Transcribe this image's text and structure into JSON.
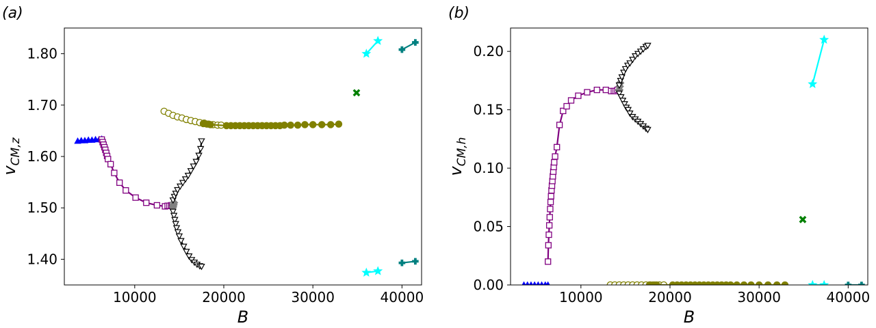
{
  "chart_data": [
    {
      "type": "line",
      "panel_label": "(a)",
      "xlabel": "B",
      "ylabel": "v_{CM,z}",
      "ylabel_main": "v",
      "ylabel_sub": "CM,z",
      "xlim": [
        2100,
        42200
      ],
      "ylim": [
        1.35,
        1.85
      ],
      "xticks": [
        10000,
        20000,
        30000,
        40000
      ],
      "xtick_labels": [
        "10000",
        "20000",
        "30000",
        "40000"
      ],
      "yticks": [
        1.4,
        1.5,
        1.6,
        1.7,
        1.8
      ],
      "ytick_labels": [
        "1.40",
        "1.50",
        "1.60",
        "1.70",
        "1.80"
      ],
      "grid": false,
      "series": [
        {
          "name": "blue-triangles",
          "color": "#0000ff",
          "marker": "triangle-up",
          "filled": true,
          "x": [
            3600,
            4000,
            4400,
            4800,
            5200,
            5600,
            6000,
            6300
          ],
          "y": [
            1.63,
            1.631,
            1.631,
            1.632,
            1.632,
            1.633,
            1.633,
            1.634
          ]
        },
        {
          "name": "purple-squares",
          "color": "#800080",
          "marker": "square",
          "filled": false,
          "x": [
            6300,
            6400,
            6500,
            6600,
            6700,
            6800,
            6900,
            7000,
            7300,
            7700,
            8300,
            9000,
            10100,
            11300,
            12500,
            13400,
            13700,
            13900,
            14100,
            14200
          ],
          "y": [
            1.633,
            1.628,
            1.623,
            1.618,
            1.613,
            1.607,
            1.601,
            1.595,
            1.585,
            1.568,
            1.549,
            1.534,
            1.52,
            1.51,
            1.505,
            1.503,
            1.504,
            1.504,
            1.505,
            1.505
          ]
        },
        {
          "name": "grey-diamonds",
          "color": "#808080",
          "marker": "diamond",
          "filled": true,
          "x": [
            14300,
            14350,
            14400
          ],
          "y": [
            1.502,
            1.506,
            1.51
          ]
        },
        {
          "name": "black-triangles-upper",
          "color": "#000000",
          "marker": "triangle-down",
          "filled": false,
          "x": [
            14300,
            14450,
            14600,
            14800,
            15100,
            15400,
            15700,
            16000,
            16300,
            16600,
            16900,
            17200,
            17400,
            17500
          ],
          "y": [
            1.515,
            1.522,
            1.528,
            1.535,
            1.542,
            1.549,
            1.556,
            1.563,
            1.572,
            1.581,
            1.59,
            1.602,
            1.615,
            1.63
          ]
        },
        {
          "name": "black-triangles-lower",
          "color": "#000000",
          "marker": "triangle-down",
          "filled": false,
          "x": [
            14300,
            14400,
            14500,
            14600,
            14700,
            14850,
            15000,
            15200,
            15500,
            15800,
            16100,
            16400,
            16700,
            17000,
            17300,
            17500
          ],
          "y": [
            1.493,
            1.485,
            1.477,
            1.469,
            1.461,
            1.453,
            1.445,
            1.436,
            1.425,
            1.415,
            1.406,
            1.399,
            1.394,
            1.39,
            1.387,
            1.386
          ]
        },
        {
          "name": "olive-circles-open",
          "color": "#808000",
          "marker": "circle",
          "filled": false,
          "x": [
            13300,
            13800,
            14300,
            14800,
            15300,
            15800,
            16300,
            16800,
            17300,
            17800,
            18300,
            18800,
            19300,
            19700
          ],
          "y": [
            1.688,
            1.684,
            1.68,
            1.677,
            1.675,
            1.672,
            1.67,
            1.668,
            1.666,
            1.665,
            1.663,
            1.662,
            1.661,
            1.661
          ]
        },
        {
          "name": "olive-circles-filled",
          "color": "#808000",
          "marker": "circle",
          "filled": true,
          "x": [
            17700,
            18100,
            18500,
            20300,
            20800,
            21300,
            21800,
            22300,
            22800,
            23300,
            23800,
            24300,
            24800,
            25300,
            25800,
            26300,
            26800,
            27500,
            28300,
            29100,
            30000,
            31000,
            32000,
            32900
          ],
          "y": [
            1.664,
            1.663,
            1.662,
            1.66,
            1.66,
            1.66,
            1.66,
            1.66,
            1.66,
            1.66,
            1.66,
            1.66,
            1.66,
            1.66,
            1.66,
            1.66,
            1.661,
            1.661,
            1.661,
            1.662,
            1.662,
            1.662,
            1.662,
            1.663
          ]
        },
        {
          "name": "green-x",
          "color": "#008000",
          "marker": "x",
          "filled": true,
          "x": [
            34900
          ],
          "y": [
            1.724
          ]
        },
        {
          "name": "cyan-stars-upper",
          "color": "#00ffff",
          "marker": "star",
          "filled": true,
          "x": [
            36000,
            37300
          ],
          "y": [
            1.8,
            1.825
          ]
        },
        {
          "name": "cyan-stars-lower",
          "color": "#00ffff",
          "marker": "star",
          "filled": true,
          "x": [
            36000,
            37300
          ],
          "y": [
            1.374,
            1.377
          ]
        },
        {
          "name": "teal-plus-upper",
          "color": "#008080",
          "marker": "plus",
          "filled": true,
          "x": [
            40000,
            41500
          ],
          "y": [
            1.808,
            1.822
          ]
        },
        {
          "name": "teal-plus-lower",
          "color": "#008080",
          "marker": "plus",
          "filled": true,
          "x": [
            40000,
            41500
          ],
          "y": [
            1.393,
            1.396
          ]
        }
      ]
    },
    {
      "type": "line",
      "panel_label": "(b)",
      "xlabel": "B",
      "ylabel": "v_{CM,h}",
      "ylabel_main": "v",
      "ylabel_sub": "CM,h",
      "xlim": [
        2100,
        42200
      ],
      "ylim": [
        0.0,
        0.22
      ],
      "xticks": [
        10000,
        20000,
        30000,
        40000
      ],
      "xtick_labels": [
        "10000",
        "20000",
        "30000",
        "40000"
      ],
      "yticks": [
        0.0,
        0.05,
        0.1,
        0.15,
        0.2
      ],
      "ytick_labels": [
        "0.00",
        "0.05",
        "0.10",
        "0.15",
        "0.20"
      ],
      "grid": false,
      "series": [
        {
          "name": "blue-triangles",
          "color": "#0000ff",
          "marker": "triangle-up",
          "filled": true,
          "x": [
            3600,
            4000,
            4400,
            4800,
            5200,
            5600,
            6000,
            6300
          ],
          "y": [
            0,
            0,
            0,
            0,
            0,
            0,
            0,
            0
          ]
        },
        {
          "name": "purple-squares",
          "color": "#800080",
          "marker": "square",
          "filled": false,
          "x": [
            6300,
            6350,
            6400,
            6450,
            6500,
            6550,
            6600,
            6650,
            6700,
            6750,
            6800,
            6850,
            6900,
            6950,
            7000,
            7100,
            7300,
            7600,
            8000,
            8400,
            8900,
            9700,
            10700,
            11800,
            12800,
            13400,
            13700,
            13900,
            14100
          ],
          "y": [
            0.02,
            0.034,
            0.043,
            0.051,
            0.058,
            0.065,
            0.071,
            0.076,
            0.081,
            0.085,
            0.089,
            0.093,
            0.097,
            0.101,
            0.105,
            0.11,
            0.118,
            0.137,
            0.149,
            0.153,
            0.158,
            0.162,
            0.165,
            0.167,
            0.167,
            0.166,
            0.166,
            0.166,
            0.167
          ]
        },
        {
          "name": "grey-diamonds",
          "color": "#808080",
          "marker": "diamond",
          "filled": true,
          "x": [
            14300,
            14350,
            14400
          ],
          "y": [
            0.167,
            0.17,
            0.173
          ]
        },
        {
          "name": "black-triangles-upper",
          "color": "#000000",
          "marker": "triangle-down",
          "filled": false,
          "x": [
            14300,
            14450,
            14600,
            14800,
            15000,
            15250,
            15500,
            15800,
            16100,
            16400,
            16700,
            17000,
            17300,
            17500
          ],
          "y": [
            0.171,
            0.175,
            0.178,
            0.182,
            0.185,
            0.188,
            0.19,
            0.193,
            0.196,
            0.198,
            0.2,
            0.202,
            0.204,
            0.205
          ]
        },
        {
          "name": "black-triangles-lower",
          "color": "#000000",
          "marker": "triangle-down",
          "filled": false,
          "x": [
            14300,
            14500,
            14700,
            14900,
            15100,
            15300,
            15500,
            15800,
            16100,
            16400,
            16700,
            17000,
            17300,
            17500
          ],
          "y": [
            0.164,
            0.161,
            0.158,
            0.155,
            0.152,
            0.15,
            0.147,
            0.144,
            0.142,
            0.14,
            0.138,
            0.136,
            0.134,
            0.133
          ]
        },
        {
          "name": "olive-circles-open",
          "color": "#808000",
          "marker": "circle",
          "filled": false,
          "x": [
            13300,
            13800,
            14300,
            14800,
            15300,
            15800,
            16300,
            16800,
            17300,
            17800,
            18300,
            18800,
            19300
          ],
          "y": [
            0,
            0,
            0,
            0,
            0,
            0,
            0,
            0,
            0,
            0,
            0,
            0,
            0
          ]
        },
        {
          "name": "olive-circles-filled",
          "color": "#808000",
          "marker": "circle",
          "filled": true,
          "x": [
            17700,
            18100,
            18500,
            20300,
            20800,
            21300,
            21800,
            22300,
            22800,
            23300,
            23800,
            24300,
            24800,
            25300,
            25800,
            26300,
            26800,
            27500,
            28300,
            29100,
            30000,
            31000,
            32000,
            32900
          ],
          "y": [
            0,
            0,
            0,
            0,
            0,
            0,
            0,
            0,
            0,
            0,
            0,
            0,
            0,
            0,
            0,
            0,
            0,
            0,
            0,
            0,
            0,
            0,
            0,
            0
          ]
        },
        {
          "name": "green-x",
          "color": "#008000",
          "marker": "x",
          "filled": true,
          "x": [
            34900
          ],
          "y": [
            0.056
          ]
        },
        {
          "name": "cyan-stars-upper",
          "color": "#00ffff",
          "marker": "star",
          "filled": true,
          "x": [
            36000,
            37300
          ],
          "y": [
            0.172,
            0.21
          ]
        },
        {
          "name": "cyan-stars-lower",
          "color": "#00ffff",
          "marker": "star",
          "filled": true,
          "x": [
            36000,
            37300
          ],
          "y": [
            0,
            0
          ]
        },
        {
          "name": "teal-plus",
          "color": "#008080",
          "marker": "plus",
          "filled": true,
          "x": [
            40000,
            41500
          ],
          "y": [
            0,
            0
          ]
        }
      ]
    }
  ]
}
